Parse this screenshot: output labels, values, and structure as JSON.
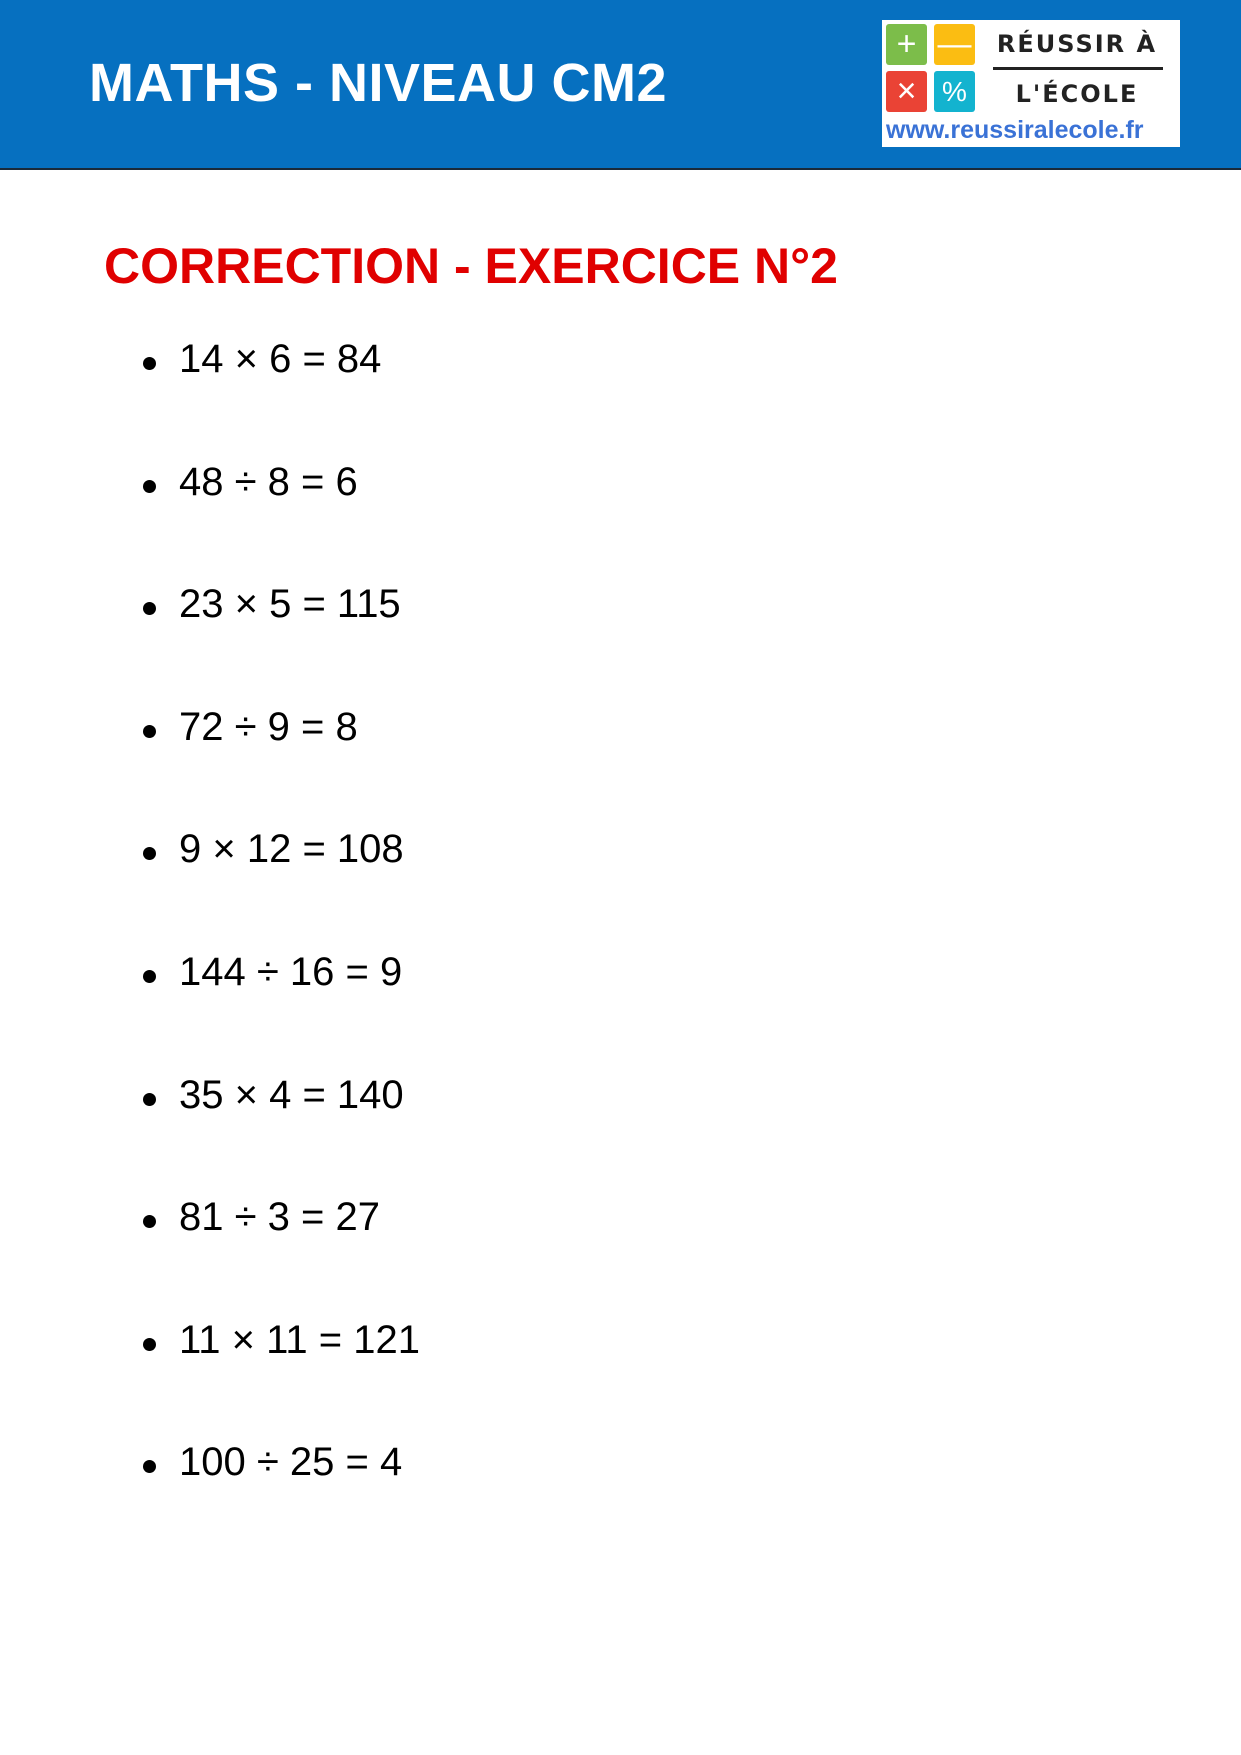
{
  "header": {
    "title": "MATHS - NIVEAU CM2",
    "background": "#0670c0"
  },
  "logo": {
    "line1": "RÉUSSIR À",
    "line2": "L'ÉCOLE",
    "url": "www.reussiralecole.fr",
    "tiles": [
      {
        "symbol": "+",
        "color": "#7cbd4a"
      },
      {
        "symbol": "—",
        "color": "#fbbd12"
      },
      {
        "symbol": "×",
        "color": "#ea4335"
      },
      {
        "symbol": "%",
        "color": "#13b3cf"
      }
    ]
  },
  "correction": {
    "title": "CORRECTION - EXERCICE N°2",
    "color": "#e00000",
    "items": [
      "14 × 6 = 84",
      "48 ÷ 8 = 6",
      "23 × 5 = 115",
      "72 ÷ 9 = 8",
      "9 × 12 = 108",
      "144 ÷ 16 = 9",
      "35 × 4 = 140",
      "81 ÷ 3 = 27",
      "11 × 11 = 121",
      "100 ÷ 25 = 4"
    ]
  }
}
